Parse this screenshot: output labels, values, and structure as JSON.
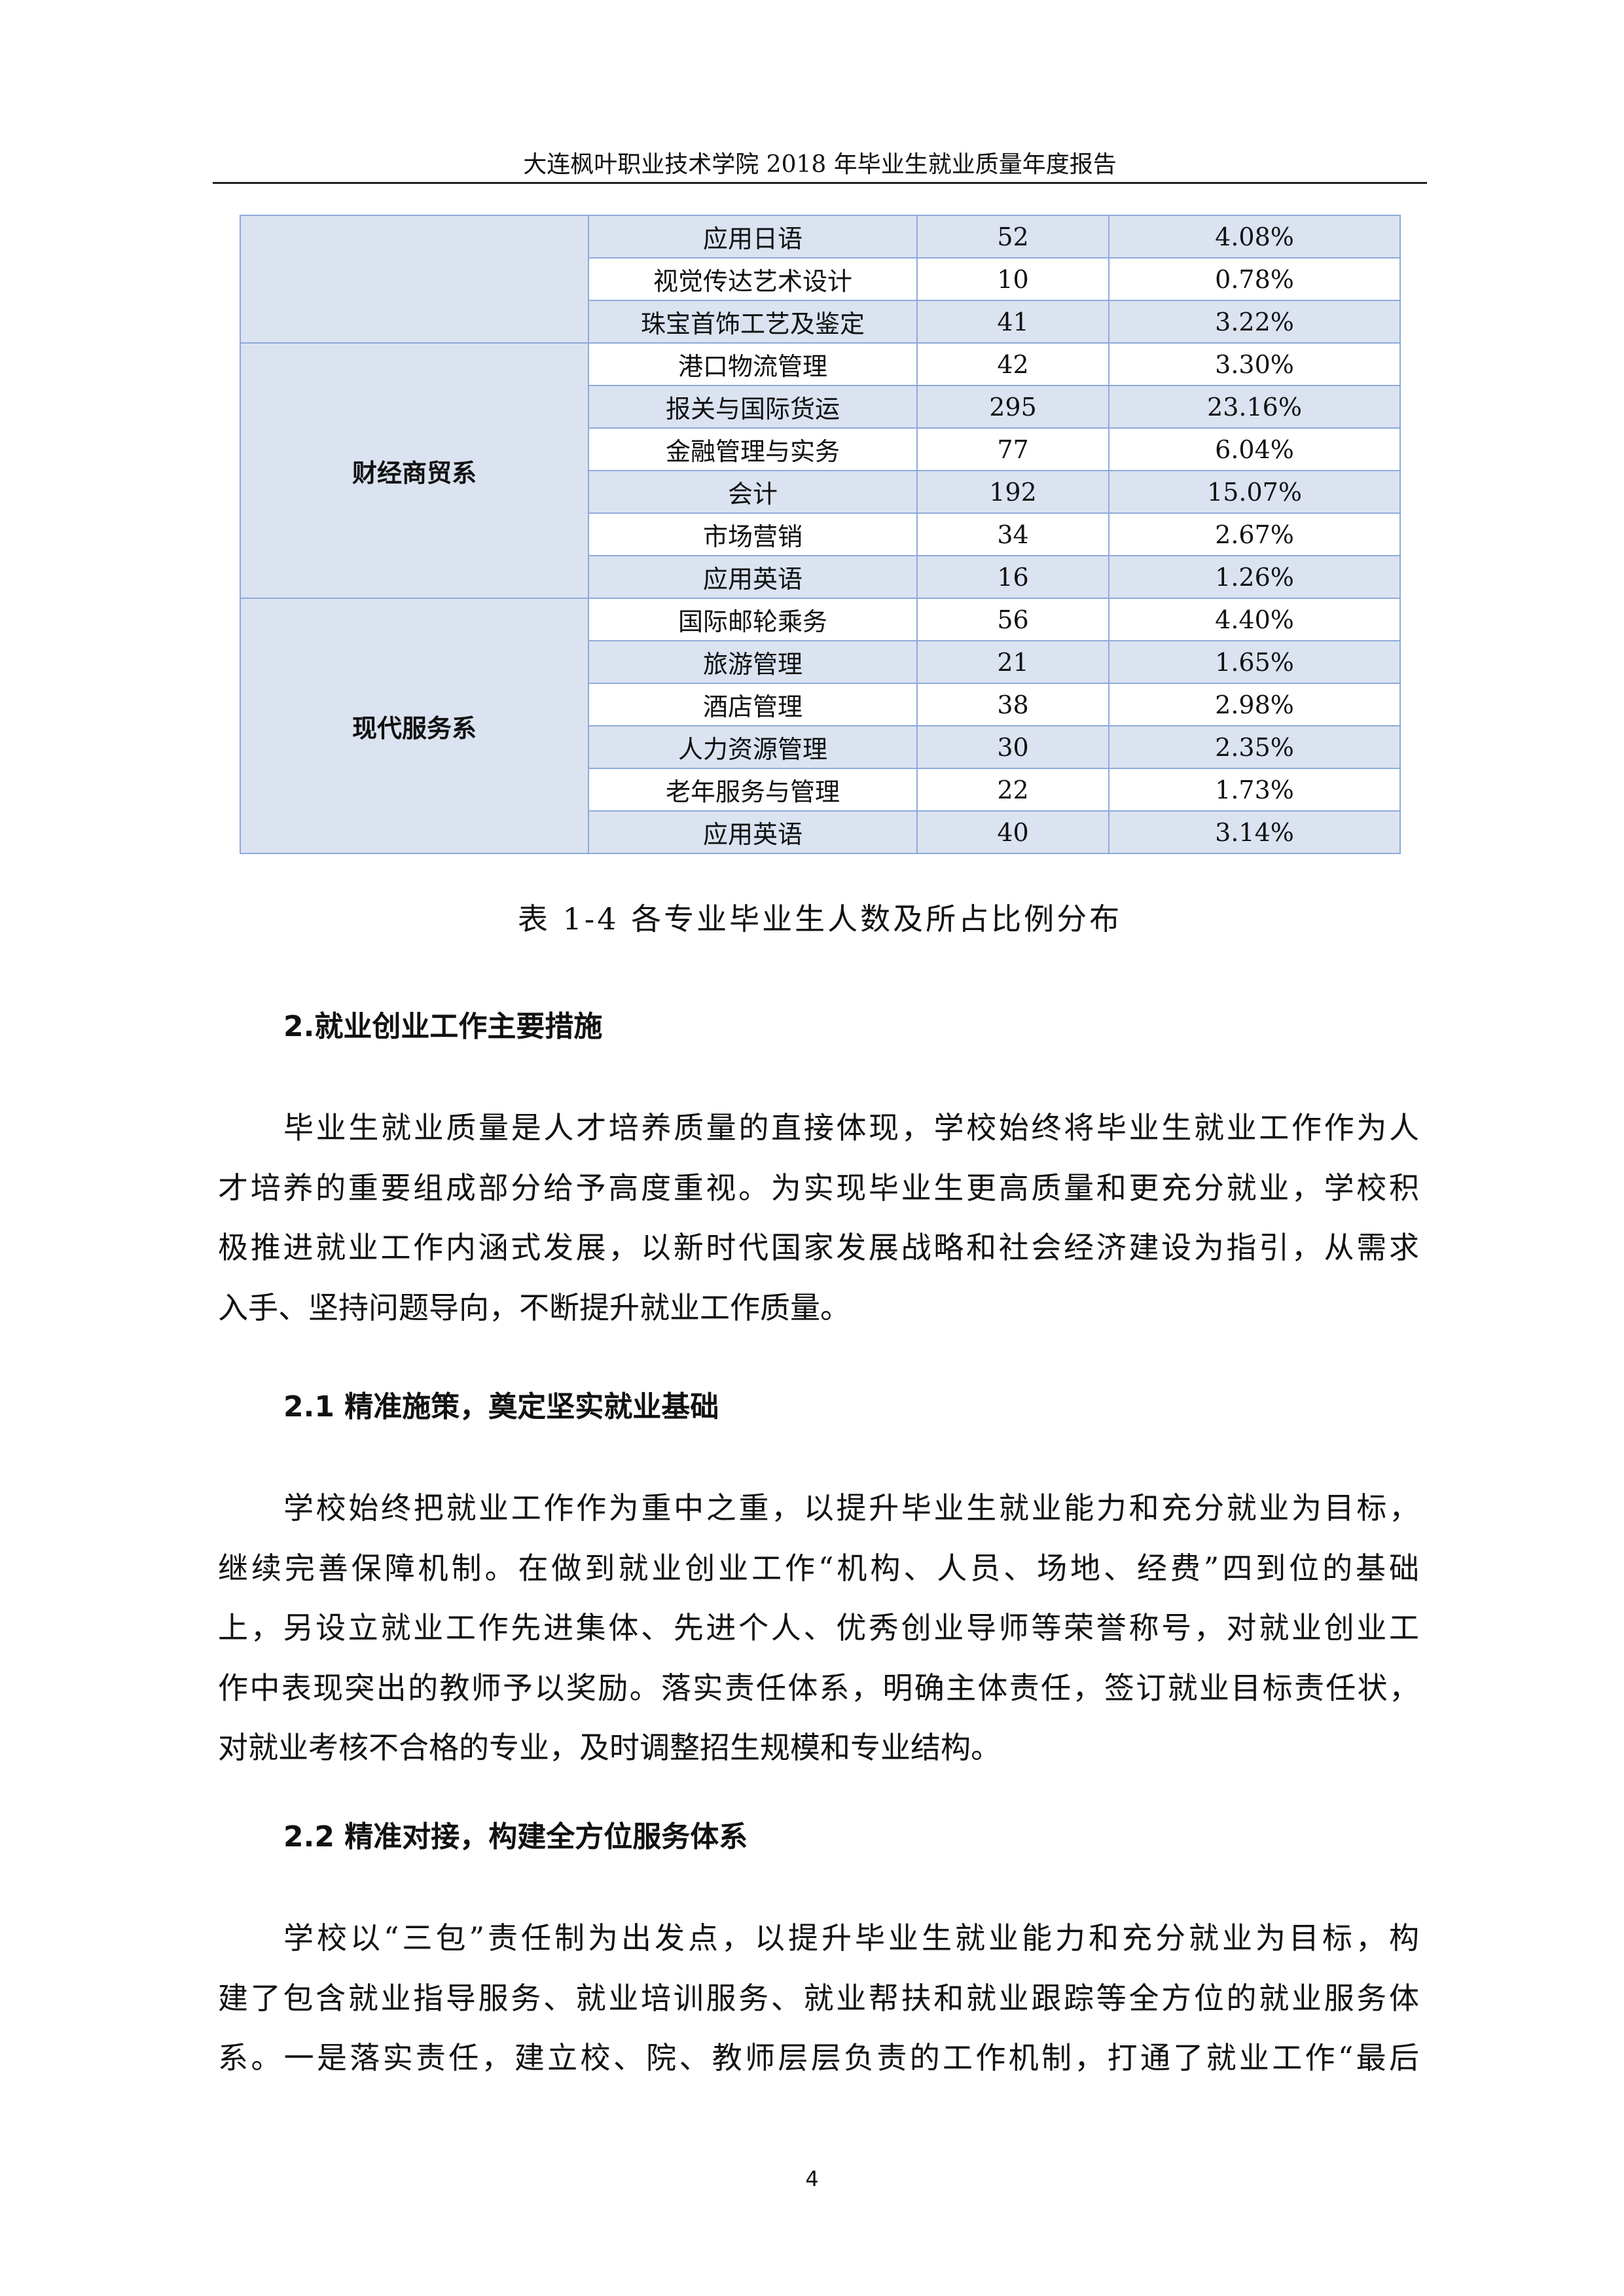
{
  "header": {
    "title": "大连枫叶职业技术学院 2018 年毕业生就业质量年度报告"
  },
  "table": {
    "groups": [
      {
        "dept": "",
        "rows": [
          [
            "应用日语",
            "52",
            "4.08%"
          ],
          [
            "视觉传达艺术设计",
            "10",
            "0.78%"
          ],
          [
            "珠宝首饰工艺及鉴定",
            "41",
            "3.22%"
          ]
        ]
      },
      {
        "dept": "财经商贸系",
        "rows": [
          [
            "港口物流管理",
            "42",
            "3.30%"
          ],
          [
            "报关与国际货运",
            "295",
            "23.16%"
          ],
          [
            "金融管理与实务",
            "77",
            "6.04%"
          ],
          [
            "会计",
            "192",
            "15.07%"
          ],
          [
            "市场营销",
            "34",
            "2.67%"
          ],
          [
            "应用英语",
            "16",
            "1.26%"
          ]
        ]
      },
      {
        "dept": "现代服务系",
        "rows": [
          [
            "国际邮轮乘务",
            "56",
            "4.40%"
          ],
          [
            "旅游管理",
            "21",
            "1.65%"
          ],
          [
            "酒店管理",
            "38",
            "2.98%"
          ],
          [
            "人力资源管理",
            "30",
            "2.35%"
          ],
          [
            "老年服务与管理",
            "22",
            "1.73%"
          ],
          [
            "应用英语",
            "40",
            "3.14%"
          ]
        ]
      }
    ],
    "caption": "表 1-4 各专业毕业生人数及所占比例分布"
  },
  "sections": [
    {
      "heading": "2.就业创业工作主要措施",
      "lines": [
        "毕业生就业质量是人才培养质量的直接体现，学校始终将毕业生就业工作作为人",
        "才培养的重要组成部分给予高度重视。为实现毕业生更高质量和更充分就业，学校积",
        "极推进就业工作内涵式发展，以新时代国家发展战略和社会经济建设为指引，从需求",
        "入手、坚持问题导向，不断提升就业工作质量。"
      ]
    },
    {
      "heading": "2.1 精准施策，奠定坚实就业基础",
      "lines": [
        "学校始终把就业工作作为重中之重，以提升毕业生就业能力和充分就业为目标，",
        "继续完善保障机制。在做到就业创业工作“机构、人员、场地、经费”四到位的基础",
        "上，另设立就业工作先进集体、先进个人、优秀创业导师等荣誉称号，对就业创业工",
        "作中表现突出的教师予以奖励。落实责任体系，明确主体责任，签订就业目标责任状，",
        "对就业考核不合格的专业，及时调整招生规模和专业结构。"
      ]
    },
    {
      "heading": "2.2 精准对接，构建全方位服务体系",
      "lines": [
        "学校以“三包”责任制为出发点，以提升毕业生就业能力和充分就业为目标，构",
        "建了包含就业指导服务、就业培训服务、就业帮扶和就业跟踪等全方位的就业服务体",
        "系。一是落实责任，建立校、院、教师层层负责的工作机制，打通了就业工作“最后"
      ]
    }
  ],
  "page_number": "4",
  "colors": {
    "table_fill": "#dbe3f1",
    "table_border": "#8eaadb"
  }
}
